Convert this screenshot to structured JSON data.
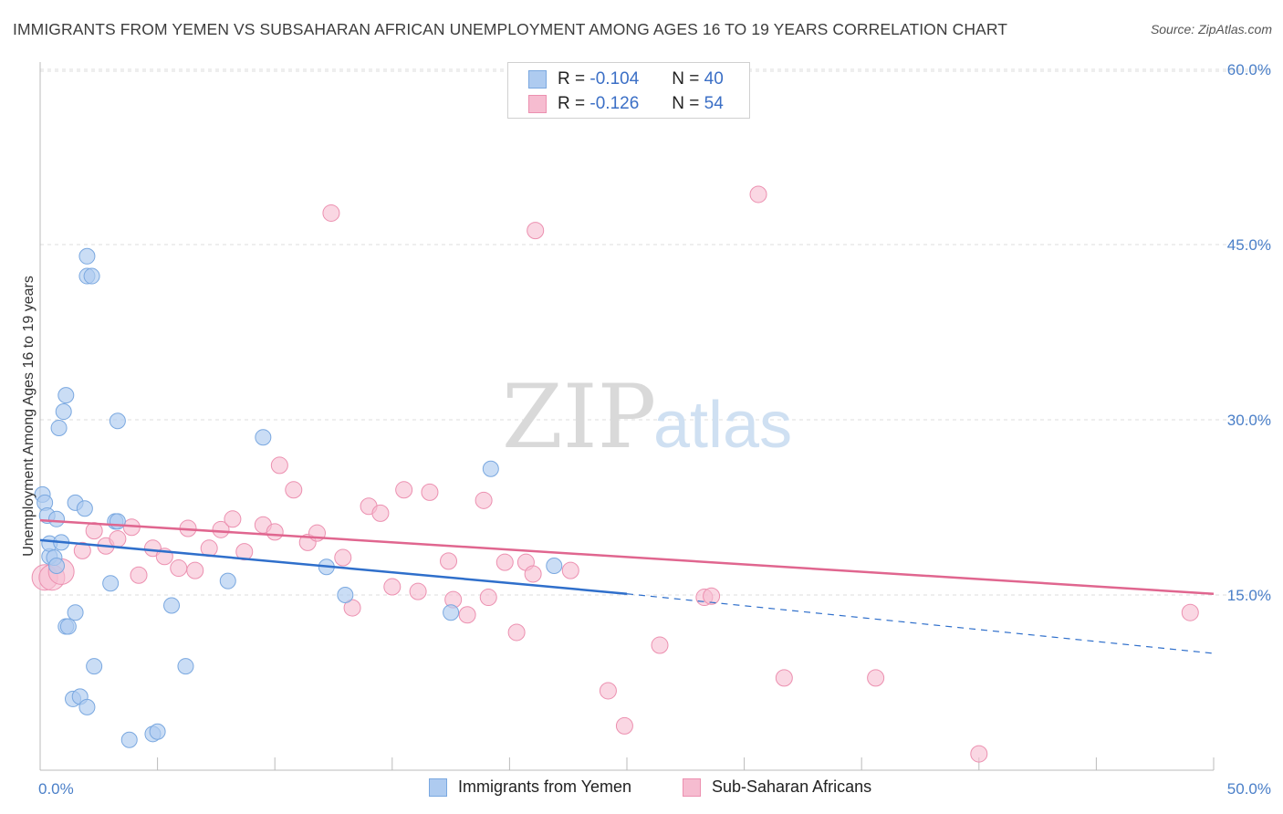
{
  "header": {
    "title": "IMMIGRANTS FROM YEMEN VS SUBSAHARAN AFRICAN UNEMPLOYMENT AMONG AGES 16 TO 19 YEARS CORRELATION CHART",
    "source": "Source: ZipAtlas.com"
  },
  "watermark": {
    "zip": "ZIP",
    "atlas": "atlas"
  },
  "legend": {
    "yemen": {
      "r_label": "R =",
      "r_value": "-0.104",
      "n_label": "N =",
      "n_value": "40",
      "name": "Immigrants from Yemen"
    },
    "subsaharan": {
      "r_label": "R =",
      "r_value": "-0.126",
      "n_label": "N =",
      "n_value": "54",
      "name": "Sub-Saharan Africans"
    }
  },
  "colors": {
    "yemen_fill": "#aecbf0",
    "yemen_stroke": "#7aa8e0",
    "yemen_line": "#2f6fcb",
    "subsaharan_fill": "#f6bcd0",
    "subsaharan_stroke": "#ec90b0",
    "subsaharan_line": "#e0668f",
    "tick_label": "#4a7fc8",
    "grid": "#dddddd"
  },
  "chart_data": {
    "type": "scatter",
    "title": "IMMIGRANTS FROM YEMEN VS SUBSAHARAN AFRICAN UNEMPLOYMENT AMONG AGES 16 TO 19 YEARS CORRELATION CHART",
    "xlabel": "",
    "ylabel": "Unemployment Among Ages 16 to 19 years",
    "xlim": [
      0,
      50
    ],
    "ylim": [
      0,
      60
    ],
    "x_tick_labels": [
      "0.0%",
      "50.0%"
    ],
    "y_ticks": [
      15,
      30,
      45,
      60
    ],
    "y_tick_labels": [
      "15.0%",
      "30.0%",
      "45.0%",
      "60.0%"
    ],
    "grid": "horizontal dashed",
    "legend_position": "top-center",
    "series": [
      {
        "name": "Immigrants from Yemen",
        "r": -0.104,
        "n": 40,
        "trend": {
          "x": [
            0,
            25
          ],
          "y": [
            19.7,
            15.1
          ],
          "dashed_extension": {
            "x": [
              25,
              50
            ],
            "y": [
              15.1,
              10.0
            ]
          }
        },
        "points": [
          [
            0.1,
            23.6
          ],
          [
            0.2,
            22.9
          ],
          [
            0.3,
            21.8
          ],
          [
            0.4,
            18.3
          ],
          [
            0.4,
            19.4
          ],
          [
            0.6,
            18.2
          ],
          [
            0.7,
            21.5
          ],
          [
            0.7,
            17.5
          ],
          [
            0.8,
            29.3
          ],
          [
            0.9,
            19.5
          ],
          [
            1.0,
            30.7
          ],
          [
            1.1,
            32.1
          ],
          [
            1.5,
            13.5
          ],
          [
            1.5,
            22.9
          ],
          [
            1.1,
            12.3
          ],
          [
            1.2,
            12.3
          ],
          [
            1.4,
            6.1
          ],
          [
            1.7,
            6.3
          ],
          [
            1.9,
            22.4
          ],
          [
            2.0,
            5.4
          ],
          [
            2.0,
            44.0
          ],
          [
            2.0,
            42.3
          ],
          [
            2.2,
            42.3
          ],
          [
            2.3,
            8.9
          ],
          [
            3.0,
            16.0
          ],
          [
            3.2,
            21.3
          ],
          [
            3.3,
            21.3
          ],
          [
            3.3,
            29.9
          ],
          [
            3.8,
            2.6
          ],
          [
            4.8,
            3.1
          ],
          [
            5.0,
            3.3
          ],
          [
            5.6,
            14.1
          ],
          [
            6.2,
            8.9
          ],
          [
            8.0,
            16.2
          ],
          [
            9.5,
            28.5
          ],
          [
            12.2,
            17.4
          ],
          [
            13.0,
            15.0
          ],
          [
            17.5,
            13.5
          ],
          [
            19.2,
            25.8
          ],
          [
            21.9,
            17.5
          ]
        ]
      },
      {
        "name": "Sub-Saharan Africans",
        "r": -0.126,
        "n": 54,
        "trend": {
          "x": [
            0,
            50
          ],
          "y": [
            21.4,
            15.1
          ]
        },
        "points": [
          [
            0.2,
            16.5
          ],
          [
            0.5,
            16.5
          ],
          [
            0.9,
            17.0
          ],
          [
            1.8,
            18.8
          ],
          [
            2.3,
            20.5
          ],
          [
            2.8,
            19.2
          ],
          [
            3.3,
            19.8
          ],
          [
            3.9,
            20.8
          ],
          [
            4.2,
            16.7
          ],
          [
            4.8,
            19.0
          ],
          [
            5.3,
            18.3
          ],
          [
            5.9,
            17.3
          ],
          [
            6.3,
            20.7
          ],
          [
            6.6,
            17.1
          ],
          [
            7.2,
            19.0
          ],
          [
            7.7,
            20.6
          ],
          [
            8.2,
            21.5
          ],
          [
            8.7,
            18.7
          ],
          [
            9.5,
            21.0
          ],
          [
            10.0,
            20.4
          ],
          [
            10.2,
            26.1
          ],
          [
            10.8,
            24.0
          ],
          [
            11.4,
            19.5
          ],
          [
            11.8,
            20.3
          ],
          [
            12.4,
            47.7
          ],
          [
            12.9,
            18.2
          ],
          [
            13.3,
            13.9
          ],
          [
            14.0,
            22.6
          ],
          [
            14.5,
            22.0
          ],
          [
            15.0,
            15.7
          ],
          [
            15.5,
            24.0
          ],
          [
            16.1,
            15.3
          ],
          [
            16.6,
            23.8
          ],
          [
            17.4,
            17.9
          ],
          [
            17.6,
            14.6
          ],
          [
            18.2,
            13.3
          ],
          [
            18.9,
            23.1
          ],
          [
            19.1,
            14.8
          ],
          [
            19.8,
            17.8
          ],
          [
            20.3,
            11.8
          ],
          [
            20.7,
            17.8
          ],
          [
            21.0,
            16.8
          ],
          [
            21.1,
            46.2
          ],
          [
            22.6,
            17.1
          ],
          [
            24.2,
            6.8
          ],
          [
            24.9,
            3.8
          ],
          [
            26.4,
            10.7
          ],
          [
            28.3,
            14.8
          ],
          [
            28.6,
            14.9
          ],
          [
            30.6,
            49.3
          ],
          [
            31.7,
            7.9
          ],
          [
            35.6,
            7.9
          ],
          [
            40.0,
            1.4
          ],
          [
            49.0,
            13.5
          ]
        ]
      }
    ]
  }
}
